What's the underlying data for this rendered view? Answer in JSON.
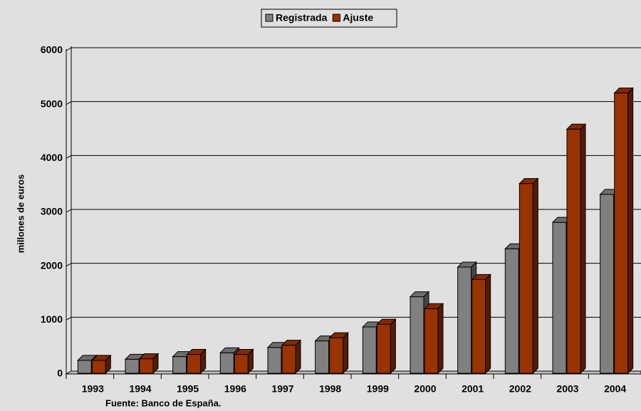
{
  "chart_data": {
    "type": "bar3d",
    "ylabel": "millones de euros",
    "source": "Fuente: Banco de España.",
    "categories": [
      "1993",
      "1994",
      "1995",
      "1996",
      "1997",
      "1998",
      "1999",
      "2000",
      "2001",
      "2002",
      "2003",
      "2004"
    ],
    "series": [
      {
        "name": "Registrada",
        "color": "#808080",
        "values": [
          200,
          220,
          270,
          340,
          440,
          560,
          820,
          1380,
          1930,
          2270,
          2760,
          3280
        ]
      },
      {
        "name": "Ajuste",
        "color": "#993300",
        "values": [
          200,
          230,
          310,
          310,
          480,
          620,
          870,
          1160,
          1700,
          3480,
          4490,
          5160
        ]
      }
    ],
    "ylim": [
      0,
      6000
    ],
    "yticks": [
      0,
      1000,
      2000,
      3000,
      4000,
      5000,
      6000
    ],
    "grid": true,
    "legend": "top"
  }
}
